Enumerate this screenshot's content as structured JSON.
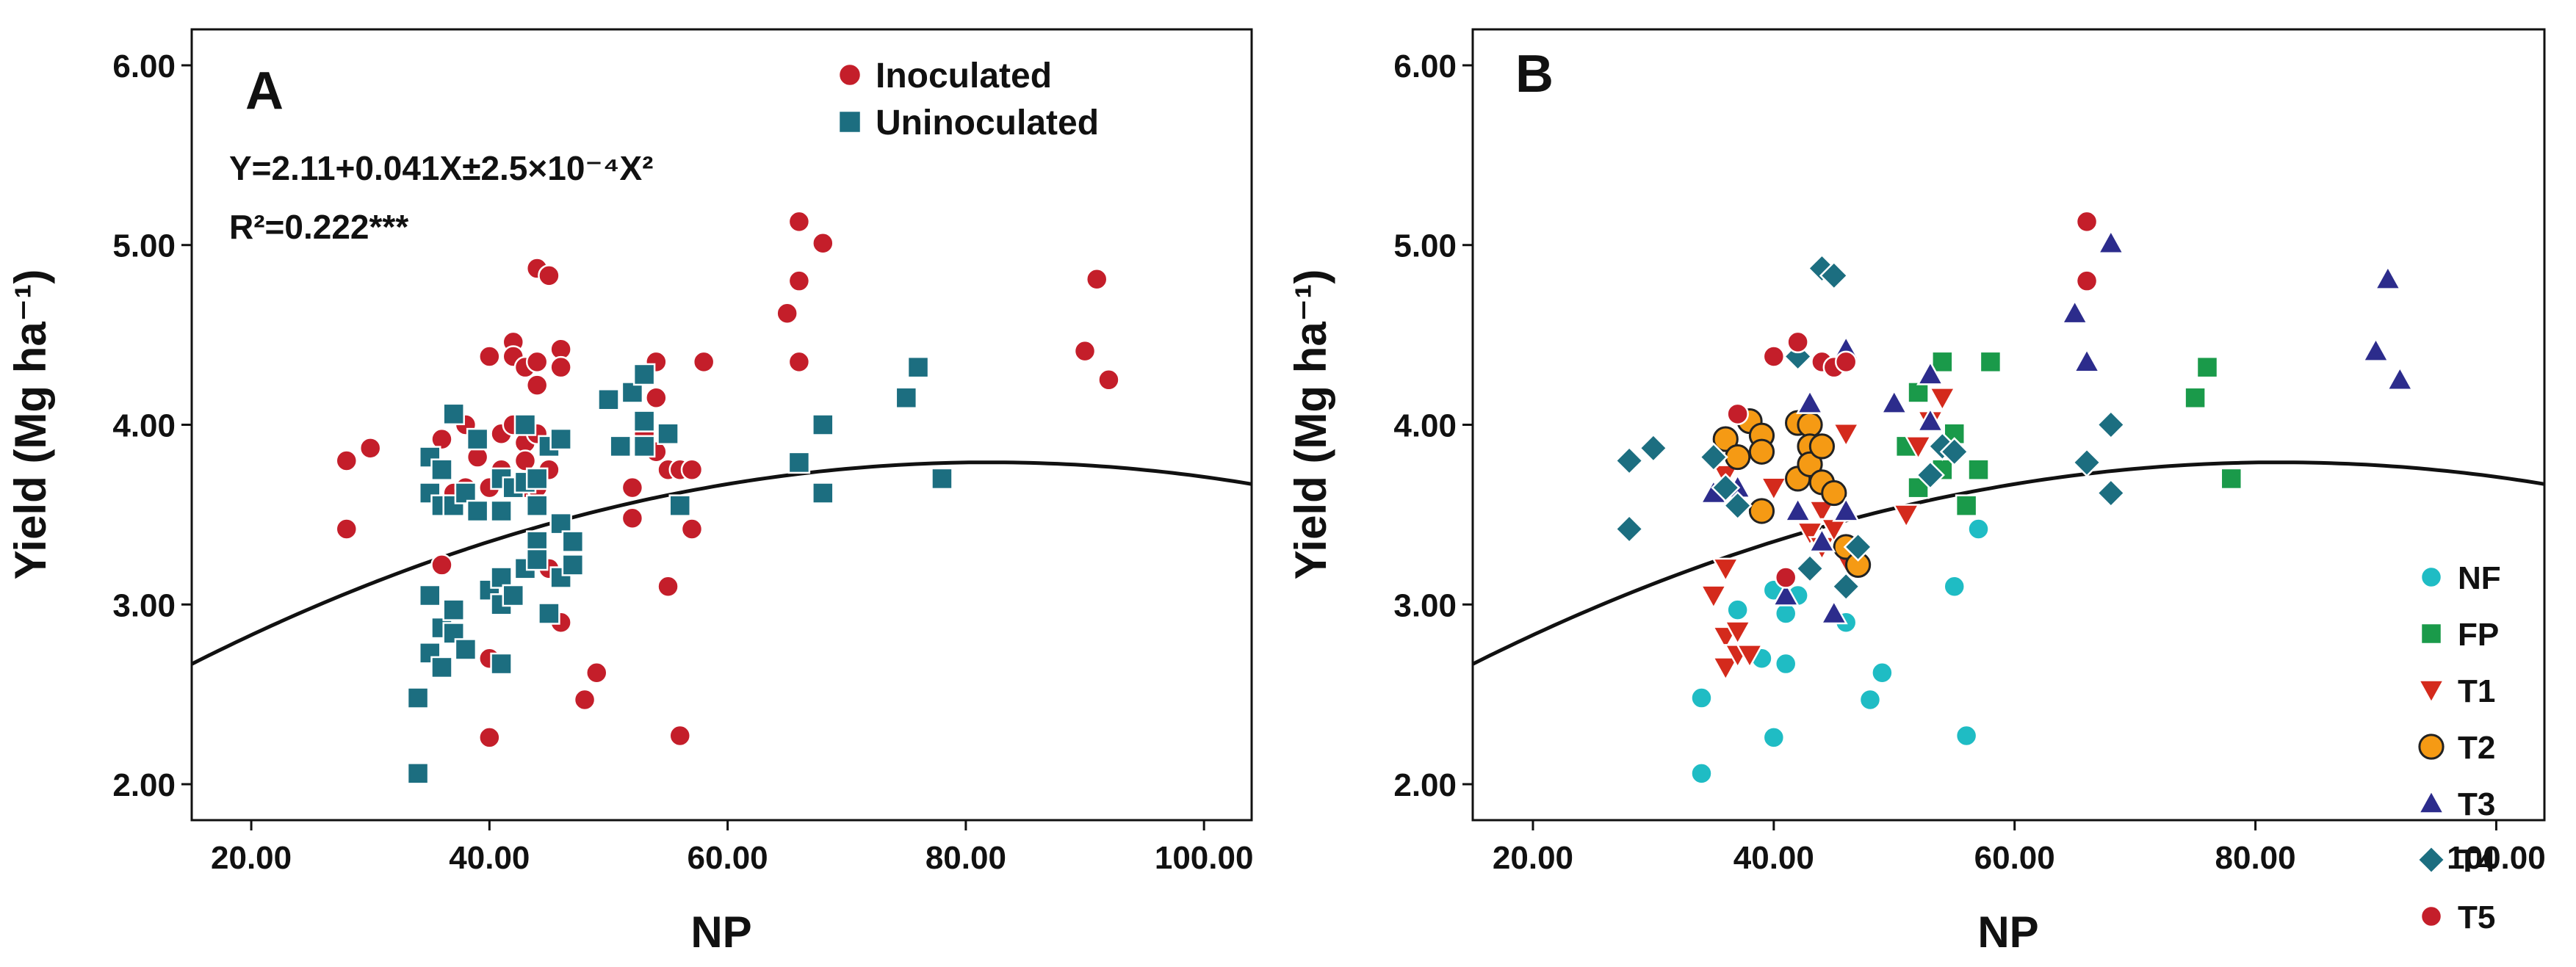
{
  "chart_data": [
    {
      "type": "scatter",
      "panel": "A",
      "xlabel": "NP",
      "ylabel": "Yield (Mg ha⁻¹)",
      "xlim": [
        15,
        104
      ],
      "ylim": [
        1.8,
        6.2
      ],
      "xticks": [
        "20.00",
        "40.00",
        "60.00",
        "80.00",
        "100.00"
      ],
      "yticks": [
        "2.00",
        "3.00",
        "4.00",
        "5.00",
        "6.00"
      ],
      "xtick_values": [
        20,
        40,
        60,
        80,
        100
      ],
      "ytick_values": [
        2,
        3,
        4,
        5,
        6
      ],
      "equation": "Y=2.11+0.041X±2.5×10⁻⁴X²",
      "r2": "R²=0.222***",
      "fit": {
        "a": 2.11,
        "b": 0.041,
        "c": -0.00025
      },
      "legend": [
        {
          "name": "Inoculated",
          "color": "#c41e2a",
          "marker": "circle"
        },
        {
          "name": "Uninoculated",
          "color": "#1c6e80",
          "marker": "square"
        }
      ],
      "series": [
        {
          "name": "Inoculated",
          "color": "#c41e2a",
          "marker": "circle",
          "points": [
            [
              28,
              3.42
            ],
            [
              28,
              3.8
            ],
            [
              30,
              3.87
            ],
            [
              36,
              3.92
            ],
            [
              36,
              3.22
            ],
            [
              37,
              3.62
            ],
            [
              38,
              4.0
            ],
            [
              38,
              3.65
            ],
            [
              39,
              3.82
            ],
            [
              40,
              4.38
            ],
            [
              40,
              3.65
            ],
            [
              40,
              2.7
            ],
            [
              40,
              2.26
            ],
            [
              41,
              3.95
            ],
            [
              41,
              3.75
            ],
            [
              42,
              4.46
            ],
            [
              42,
              4.38
            ],
            [
              42,
              4.0
            ],
            [
              43,
              4.32
            ],
            [
              43,
              3.9
            ],
            [
              43,
              3.8
            ],
            [
              43,
              3.65
            ],
            [
              44,
              4.87
            ],
            [
              44,
              4.35
            ],
            [
              44,
              4.22
            ],
            [
              44,
              3.95
            ],
            [
              44,
              3.65
            ],
            [
              45,
              4.83
            ],
            [
              45,
              3.75
            ],
            [
              45,
              3.2
            ],
            [
              46,
              4.42
            ],
            [
              46,
              4.32
            ],
            [
              46,
              2.9
            ],
            [
              48,
              2.47
            ],
            [
              49,
              2.62
            ],
            [
              52,
              3.65
            ],
            [
              52,
              3.48
            ],
            [
              53,
              3.95
            ],
            [
              54,
              4.35
            ],
            [
              54,
              4.15
            ],
            [
              54,
              3.85
            ],
            [
              55,
              3.75
            ],
            [
              55,
              3.1
            ],
            [
              56,
              3.75
            ],
            [
              56,
              2.27
            ],
            [
              57,
              3.75
            ],
            [
              57,
              3.42
            ],
            [
              58,
              4.35
            ],
            [
              65,
              4.62
            ],
            [
              66,
              5.13
            ],
            [
              66,
              4.8
            ],
            [
              66,
              4.35
            ],
            [
              68,
              5.01
            ],
            [
              90,
              4.41
            ],
            [
              91,
              4.81
            ],
            [
              92,
              4.25
            ]
          ]
        },
        {
          "name": "Uninoculated",
          "color": "#1c6e80",
          "marker": "square",
          "points": [
            [
              34,
              2.06
            ],
            [
              34,
              2.48
            ],
            [
              35,
              3.62
            ],
            [
              35,
              3.82
            ],
            [
              35,
              3.05
            ],
            [
              35,
              2.73
            ],
            [
              36,
              3.75
            ],
            [
              36,
              3.55
            ],
            [
              36,
              2.87
            ],
            [
              36,
              2.65
            ],
            [
              37,
              4.06
            ],
            [
              37,
              3.55
            ],
            [
              37,
              2.97
            ],
            [
              37,
              2.84
            ],
            [
              38,
              3.62
            ],
            [
              38,
              2.75
            ],
            [
              39,
              3.92
            ],
            [
              39,
              3.52
            ],
            [
              40,
              3.08
            ],
            [
              41,
              3.7
            ],
            [
              41,
              3.52
            ],
            [
              41,
              3.15
            ],
            [
              41,
              3.0
            ],
            [
              41,
              2.67
            ],
            [
              42,
              3.65
            ],
            [
              42,
              3.05
            ],
            [
              43,
              4.0
            ],
            [
              43,
              3.68
            ],
            [
              43,
              3.2
            ],
            [
              44,
              3.7
            ],
            [
              44,
              3.55
            ],
            [
              44,
              3.35
            ],
            [
              44,
              3.25
            ],
            [
              45,
              3.88
            ],
            [
              45,
              2.95
            ],
            [
              46,
              3.92
            ],
            [
              46,
              3.45
            ],
            [
              46,
              3.15
            ],
            [
              47,
              3.35
            ],
            [
              47,
              3.22
            ],
            [
              50,
              4.14
            ],
            [
              51,
              3.88
            ],
            [
              52,
              4.18
            ],
            [
              53,
              4.28
            ],
            [
              53,
              4.02
            ],
            [
              53,
              3.88
            ],
            [
              55,
              3.95
            ],
            [
              56,
              3.55
            ],
            [
              66,
              3.79
            ],
            [
              68,
              4.0
            ],
            [
              68,
              3.62
            ],
            [
              75,
              4.15
            ],
            [
              76,
              4.32
            ],
            [
              78,
              3.7
            ]
          ]
        }
      ]
    },
    {
      "type": "scatter",
      "panel": "B",
      "xlabel": "NP",
      "ylabel": "Yield (Mg ha⁻¹)",
      "xlim": [
        15,
        104
      ],
      "ylim": [
        1.8,
        6.2
      ],
      "xticks": [
        "20.00",
        "40.00",
        "60.00",
        "80.00",
        "100.00"
      ],
      "yticks": [
        "2.00",
        "3.00",
        "4.00",
        "5.00",
        "6.00"
      ],
      "xtick_values": [
        20,
        40,
        60,
        80,
        100
      ],
      "ytick_values": [
        2,
        3,
        4,
        5,
        6
      ],
      "fit": {
        "a": 2.11,
        "b": 0.041,
        "c": -0.00025
      },
      "legend": [
        {
          "name": "NF",
          "color": "#1fbcc4",
          "marker": "circle"
        },
        {
          "name": "FP",
          "color": "#1a9a4a",
          "marker": "square"
        },
        {
          "name": "T1",
          "color": "#d42a1c",
          "marker": "triangle-down"
        },
        {
          "name": "T2",
          "color": "#f59a14",
          "marker": "circle-outlined"
        },
        {
          "name": "T3",
          "color": "#2c2c8c",
          "marker": "triangle-up"
        },
        {
          "name": "T4",
          "color": "#1c6e80",
          "marker": "diamond"
        },
        {
          "name": "T5",
          "color": "#c41e2a",
          "marker": "circle"
        }
      ],
      "series": [
        {
          "name": "NF",
          "color": "#1fbcc4",
          "marker": "circle",
          "points": [
            [
              34,
              2.06
            ],
            [
              34,
              2.48
            ],
            [
              37,
              2.97
            ],
            [
              39,
              2.7
            ],
            [
              40,
              3.08
            ],
            [
              40,
              2.26
            ],
            [
              41,
              2.95
            ],
            [
              41,
              2.67
            ],
            [
              42,
              3.05
            ],
            [
              46,
              2.9
            ],
            [
              48,
              2.47
            ],
            [
              49,
              2.62
            ],
            [
              55,
              3.1
            ],
            [
              56,
              2.27
            ],
            [
              57,
              3.42
            ]
          ]
        },
        {
          "name": "FP",
          "color": "#1a9a4a",
          "marker": "square",
          "points": [
            [
              51,
              3.88
            ],
            [
              52,
              4.18
            ],
            [
              52,
              3.65
            ],
            [
              54,
              4.35
            ],
            [
              54,
              3.75
            ],
            [
              55,
              3.95
            ],
            [
              56,
              3.55
            ],
            [
              57,
              3.75
            ],
            [
              58,
              4.35
            ],
            [
              75,
              4.15
            ],
            [
              76,
              4.32
            ],
            [
              78,
              3.7
            ]
          ]
        },
        {
          "name": "T1",
          "color": "#d42a1c",
          "marker": "triangle-down",
          "points": [
            [
              35,
              3.05
            ],
            [
              36,
              3.72
            ],
            [
              36,
              3.2
            ],
            [
              36,
              2.82
            ],
            [
              36,
              2.65
            ],
            [
              37,
              2.72
            ],
            [
              37,
              2.85
            ],
            [
              38,
              2.72
            ],
            [
              40,
              3.65
            ],
            [
              43,
              3.75
            ],
            [
              43,
              3.4
            ],
            [
              44,
              3.32
            ],
            [
              44,
              3.52
            ],
            [
              45,
              3.42
            ],
            [
              46,
              3.25
            ],
            [
              46,
              3.95
            ],
            [
              51,
              3.5
            ],
            [
              52,
              3.88
            ],
            [
              53,
              4.02
            ],
            [
              54,
              4.15
            ]
          ]
        },
        {
          "name": "T2",
          "color": "#f59a14",
          "marker": "circle-outlined",
          "points": [
            [
              36,
              3.92
            ],
            [
              37,
              3.82
            ],
            [
              38,
              4.02
            ],
            [
              39,
              3.94
            ],
            [
              39,
              3.85
            ],
            [
              39,
              3.52
            ],
            [
              42,
              3.7
            ],
            [
              42,
              4.01
            ],
            [
              43,
              4.0
            ],
            [
              43,
              3.88
            ],
            [
              43,
              3.78
            ],
            [
              44,
              3.68
            ],
            [
              44,
              3.88
            ],
            [
              45,
              3.62
            ],
            [
              46,
              3.32
            ],
            [
              47,
              3.22
            ]
          ]
        },
        {
          "name": "T3",
          "color": "#2c2c8c",
          "marker": "triangle-up",
          "points": [
            [
              35,
              3.62
            ],
            [
              37,
              3.65
            ],
            [
              41,
              3.05
            ],
            [
              42,
              3.52
            ],
            [
              43,
              4.12
            ],
            [
              44,
              3.35
            ],
            [
              45,
              2.95
            ],
            [
              46,
              4.42
            ],
            [
              46,
              3.52
            ],
            [
              50,
              4.12
            ],
            [
              53,
              4.28
            ],
            [
              53,
              4.02
            ],
            [
              65,
              4.62
            ],
            [
              66,
              4.35
            ],
            [
              68,
              5.01
            ],
            [
              90,
              4.41
            ],
            [
              91,
              4.81
            ],
            [
              92,
              4.25
            ]
          ]
        },
        {
          "name": "T4",
          "color": "#1c6e80",
          "marker": "diamond",
          "points": [
            [
              28,
              3.42
            ],
            [
              28,
              3.8
            ],
            [
              30,
              3.87
            ],
            [
              35,
              3.82
            ],
            [
              36,
              3.65
            ],
            [
              37,
              3.55
            ],
            [
              42,
              4.38
            ],
            [
              43,
              3.2
            ],
            [
              44,
              4.87
            ],
            [
              45,
              4.83
            ],
            [
              46,
              3.1
            ],
            [
              47,
              3.32
            ],
            [
              53,
              3.72
            ],
            [
              54,
              3.88
            ],
            [
              55,
              3.85
            ],
            [
              66,
              3.79
            ],
            [
              68,
              4.0
            ],
            [
              68,
              3.62
            ]
          ]
        },
        {
          "name": "T5",
          "color": "#c41e2a",
          "marker": "circle",
          "points": [
            [
              37,
              4.06
            ],
            [
              40,
              4.38
            ],
            [
              41,
              3.15
            ],
            [
              42,
              4.46
            ],
            [
              44,
              4.35
            ],
            [
              45,
              4.32
            ],
            [
              46,
              4.35
            ],
            [
              66,
              5.13
            ],
            [
              66,
              4.8
            ]
          ]
        }
      ]
    }
  ]
}
